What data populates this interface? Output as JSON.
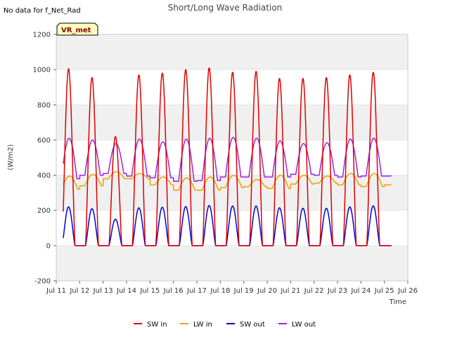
{
  "no_data_note": "No data for f_Net_Rad",
  "badge": "VR_met",
  "colors": {
    "SW in": "#e00000",
    "LW in": "#f0a000",
    "SW out": "#0000d8",
    "LW out": "#a020e0",
    "band": "#f0f0f0",
    "badge_fill": "#ffffc0"
  },
  "chart_data": {
    "type": "line",
    "title": "Short/Long Wave Radiation",
    "xlabel": "Time",
    "ylabel": "(W/m2)",
    "xlim": [
      11,
      26
    ],
    "ylim": [
      -200,
      1200
    ],
    "x_ticks": [
      11,
      12,
      13,
      14,
      15,
      16,
      17,
      18,
      19,
      20,
      21,
      22,
      23,
      24,
      25,
      26
    ],
    "x_tick_labels": [
      "Jul 11",
      "Jul 12",
      "Jul 13",
      "Jul 14",
      "Jul 15",
      "Jul 16",
      "Jul 17",
      "Jul 18",
      "Jul 19",
      "Jul 20",
      "Jul 21",
      "Jul 22",
      "Jul 23",
      "Jul 24",
      "Jul 25",
      "Jul 26"
    ],
    "y_ticks": [
      -200,
      0,
      200,
      400,
      600,
      800,
      1000,
      1200
    ],
    "legend_position": "bottom",
    "x_range_of_data": [
      11.3,
      25.3
    ],
    "daily": {
      "days": [
        11,
        12,
        13,
        14,
        15,
        16,
        17,
        18,
        19,
        20,
        21,
        22,
        23,
        24,
        25
      ],
      "sw_in_peak": [
        1005,
        955,
        620,
        970,
        980,
        1000,
        1010,
        985,
        990,
        950,
        950,
        955,
        970,
        985,
        0
      ],
      "sw_out_peak": [
        220,
        210,
        150,
        215,
        218,
        222,
        228,
        225,
        225,
        215,
        212,
        212,
        220,
        226,
        0
      ],
      "lw_out_peak": [
        610,
        600,
        580,
        605,
        590,
        605,
        610,
        615,
        610,
        595,
        580,
        585,
        605,
        610,
        400
      ],
      "lw_out_night": [
        380,
        400,
        410,
        395,
        385,
        365,
        370,
        390,
        390,
        390,
        405,
        400,
        390,
        395,
        395
      ],
      "lw_in_day": [
        395,
        405,
        420,
        410,
        390,
        385,
        390,
        400,
        375,
        400,
        400,
        395,
        410,
        410,
        350
      ],
      "lw_in_night": [
        320,
        340,
        380,
        380,
        345,
        315,
        315,
        330,
        335,
        325,
        350,
        355,
        345,
        335,
        345
      ]
    },
    "series": [
      {
        "name": "SW in"
      },
      {
        "name": "LW in"
      },
      {
        "name": "SW out"
      },
      {
        "name": "LW out"
      }
    ]
  }
}
